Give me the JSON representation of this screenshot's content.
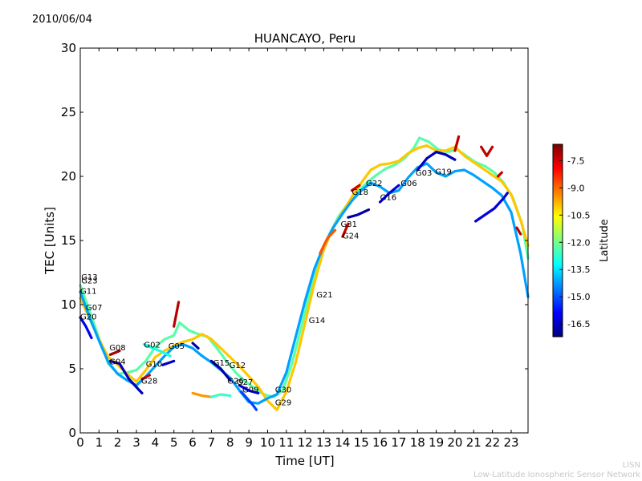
{
  "date_label": "2010/06/04",
  "credits": {
    "line1": "LISN",
    "line2": "Low-Latitude Ionospheric Sensor Network"
  },
  "chart_data": {
    "type": "scatter",
    "title": "HUANCAYO, Peru",
    "xlabel": "Time [UT]",
    "ylabel": "TEC [Units]",
    "xlim": [
      0,
      23.9
    ],
    "ylim": [
      0,
      30
    ],
    "xticks": [
      0,
      1,
      2,
      3,
      4,
      5,
      6,
      7,
      8,
      9,
      10,
      11,
      12,
      13,
      14,
      15,
      16,
      17,
      18,
      19,
      20,
      21,
      22,
      23
    ],
    "yticks": [
      0,
      5,
      10,
      15,
      20,
      25,
      30
    ],
    "colorbar": {
      "label": "Latitude",
      "range": [
        -17.2,
        -6.6
      ],
      "ticks": [
        -7.5,
        -9.0,
        -10.5,
        -12.0,
        -13.5,
        -15.0,
        -16.5
      ],
      "colors": [
        "#00007f",
        "#0000ff",
        "#007fff",
        "#00ffff",
        "#7fff7f",
        "#ffff00",
        "#ff7f00",
        "#ff0000",
        "#7f0000"
      ]
    },
    "series": [
      {
        "name": "trace-a",
        "lat": -12.3,
        "points": [
          [
            0,
            11.5
          ],
          [
            0.5,
            9.5
          ],
          [
            1,
            7.4
          ],
          [
            1.5,
            5.4
          ],
          [
            2,
            4.6
          ],
          [
            2.5,
            4.7
          ],
          [
            3,
            4.9
          ],
          [
            3.5,
            5.6
          ],
          [
            4,
            6.7
          ],
          [
            4.5,
            7.3
          ],
          [
            5,
            7.6
          ],
          [
            5.3,
            8.6
          ],
          [
            5.8,
            8.0
          ],
          [
            6.3,
            7.7
          ],
          [
            6.8,
            7.5
          ],
          [
            7.3,
            6.6
          ],
          [
            7.8,
            5.6
          ],
          [
            8.3,
            4.7
          ],
          [
            8.8,
            4.0
          ],
          [
            9.3,
            3.5
          ],
          [
            9.8,
            3.0
          ],
          [
            10.3,
            2.8
          ],
          [
            10.8,
            3.3
          ],
          [
            11.3,
            5.4
          ],
          [
            11.8,
            8.3
          ],
          [
            12.3,
            11.2
          ],
          [
            12.8,
            13.6
          ],
          [
            13.3,
            15.5
          ],
          [
            13.8,
            16.9
          ],
          [
            14.3,
            17.9
          ],
          [
            14.8,
            18.8
          ],
          [
            15.3,
            19.5
          ],
          [
            15.8,
            20.1
          ],
          [
            16.3,
            20.6
          ],
          [
            16.8,
            20.9
          ],
          [
            17.3,
            21.4
          ],
          [
            17.8,
            22.2
          ],
          [
            18.1,
            23.0
          ],
          [
            18.6,
            22.7
          ],
          [
            19.1,
            22.1
          ],
          [
            19.6,
            21.9
          ],
          [
            20.1,
            22.1
          ],
          [
            20.6,
            21.6
          ],
          [
            21.1,
            21.1
          ],
          [
            21.6,
            20.8
          ],
          [
            22.1,
            20.3
          ],
          [
            22.6,
            19.5
          ],
          [
            23.1,
            18.3
          ],
          [
            23.6,
            16.2
          ],
          [
            23.9,
            13.6
          ]
        ]
      },
      {
        "name": "trace-b",
        "lat": -10.0,
        "points": [
          [
            0,
            10.5
          ],
          [
            0.5,
            8.9
          ],
          [
            1,
            7.3
          ],
          [
            1.5,
            5.9
          ],
          [
            2,
            5.3
          ],
          [
            2.5,
            4.6
          ],
          [
            3,
            4.0
          ],
          [
            3.5,
            4.9
          ],
          [
            4,
            5.9
          ],
          [
            4.5,
            6.4
          ],
          [
            5,
            6.8
          ],
          [
            5.5,
            7.1
          ],
          [
            6,
            7.3
          ],
          [
            6.5,
            7.7
          ],
          [
            7,
            7.3
          ],
          [
            7.5,
            6.6
          ],
          [
            8,
            5.9
          ],
          [
            8.5,
            5.2
          ],
          [
            9,
            4.4
          ],
          [
            9.5,
            3.6
          ],
          [
            10,
            2.5
          ],
          [
            10.5,
            1.8
          ],
          [
            11,
            3.2
          ],
          [
            11.5,
            5.5
          ],
          [
            12,
            8.6
          ],
          [
            12.5,
            11.7
          ],
          [
            13,
            14.3
          ],
          [
            13.5,
            16.0
          ],
          [
            14,
            17.2
          ],
          [
            14.5,
            18.4
          ],
          [
            15,
            19.5
          ],
          [
            15.5,
            20.5
          ],
          [
            16,
            20.9
          ],
          [
            16.5,
            21.0
          ],
          [
            17,
            21.2
          ],
          [
            17.5,
            21.8
          ],
          [
            18,
            22.2
          ],
          [
            18.5,
            22.4
          ],
          [
            19,
            22.0
          ],
          [
            19.5,
            22.0
          ],
          [
            20,
            22.3
          ],
          [
            20.5,
            21.6
          ],
          [
            21,
            21.1
          ],
          [
            21.5,
            20.6
          ],
          [
            22,
            20.1
          ],
          [
            22.5,
            19.6
          ],
          [
            23,
            18.6
          ],
          [
            23.5,
            16.6
          ],
          [
            23.9,
            14.6
          ]
        ]
      },
      {
        "name": "trace-c",
        "lat": -14.2,
        "points": [
          [
            0,
            11.0
          ],
          [
            0.5,
            9.0
          ],
          [
            1,
            7.2
          ],
          [
            1.5,
            5.5
          ],
          [
            2,
            4.6
          ],
          [
            2.5,
            4.1
          ],
          [
            3,
            3.7
          ],
          [
            3.5,
            4.4
          ],
          [
            4,
            5.2
          ],
          [
            4.5,
            6.0
          ],
          [
            5,
            6.7
          ],
          [
            5.5,
            6.9
          ],
          [
            6,
            6.6
          ],
          [
            6.5,
            6.0
          ],
          [
            7,
            5.5
          ],
          [
            7.5,
            4.9
          ],
          [
            8,
            4.3
          ],
          [
            8.5,
            3.3
          ],
          [
            9,
            2.4
          ],
          [
            9.5,
            2.3
          ],
          [
            10,
            2.7
          ],
          [
            10.5,
            3.0
          ],
          [
            11,
            4.7
          ],
          [
            11.5,
            7.5
          ],
          [
            12,
            10.3
          ],
          [
            12.5,
            12.8
          ],
          [
            13,
            14.6
          ],
          [
            13.5,
            16.0
          ],
          [
            14,
            17.1
          ],
          [
            14.5,
            18.1
          ],
          [
            15,
            18.9
          ],
          [
            15.5,
            19.5
          ],
          [
            16,
            19.2
          ],
          [
            16.5,
            18.7
          ],
          [
            17,
            18.9
          ],
          [
            17.5,
            19.9
          ],
          [
            18,
            20.7
          ],
          [
            18.5,
            21.0
          ],
          [
            19,
            20.3
          ],
          [
            19.5,
            20.0
          ],
          [
            20,
            20.4
          ],
          [
            20.5,
            20.5
          ],
          [
            21,
            20.1
          ],
          [
            21.5,
            19.6
          ],
          [
            22,
            19.1
          ],
          [
            22.5,
            18.5
          ],
          [
            23,
            17.2
          ],
          [
            23.5,
            14.0
          ],
          [
            23.9,
            10.6
          ]
        ]
      },
      {
        "name": "trace-d",
        "lat": -16.0,
        "points": [
          [
            0,
            9.0
          ],
          [
            0.3,
            8.3
          ],
          [
            0.6,
            7.4
          ]
        ]
      },
      {
        "name": "trace-e",
        "lat": -16.6,
        "points": [
          [
            1.6,
            5.6
          ],
          [
            2.1,
            5.4
          ],
          [
            2.6,
            4.2
          ],
          [
            3.1,
            3.4
          ],
          [
            3.3,
            3.1
          ]
        ]
      },
      {
        "name": "trace-f",
        "lat": -7.0,
        "points": [
          [
            1.6,
            6.1
          ],
          [
            2.1,
            6.4
          ]
        ]
      },
      {
        "name": "trace-g",
        "lat": -13.0,
        "points": [
          [
            3.4,
            6.9
          ],
          [
            3.9,
            6.6
          ],
          [
            4.4,
            6.3
          ],
          [
            4.8,
            6.0
          ]
        ]
      },
      {
        "name": "trace-h",
        "lat": -7.4,
        "points": [
          [
            3.3,
            4.2
          ],
          [
            3.7,
            4.5
          ]
        ]
      },
      {
        "name": "trace-i",
        "lat": -16.4,
        "points": [
          [
            4.4,
            5.3
          ],
          [
            4.8,
            5.5
          ],
          [
            5.0,
            5.6
          ]
        ]
      },
      {
        "name": "trace-j",
        "lat": -7.2,
        "points": [
          [
            5.0,
            8.3
          ],
          [
            5.25,
            10.2
          ]
        ]
      },
      {
        "name": "trace-k",
        "lat": -9.5,
        "points": [
          [
            6.0,
            3.1
          ],
          [
            6.5,
            2.9
          ],
          [
            7.0,
            2.8
          ]
        ]
      },
      {
        "name": "trace-l",
        "lat": -12.6,
        "points": [
          [
            7.0,
            2.8
          ],
          [
            7.5,
            3.0
          ],
          [
            8.0,
            2.9
          ]
        ]
      },
      {
        "name": "trace-m",
        "lat": -16.8,
        "points": [
          [
            6.0,
            7.0
          ],
          [
            6.3,
            6.6
          ]
        ]
      },
      {
        "name": "trace-n",
        "lat": -16.8,
        "points": [
          [
            7.0,
            5.6
          ],
          [
            7.5,
            5.0
          ],
          [
            8.0,
            4.1
          ]
        ]
      },
      {
        "name": "trace-o",
        "lat": -16.2,
        "points": [
          [
            8.5,
            3.7
          ],
          [
            9.0,
            3.3
          ],
          [
            9.5,
            3.1
          ]
        ]
      },
      {
        "name": "trace-p",
        "lat": -15.2,
        "points": [
          [
            8.6,
            3.2
          ],
          [
            9.2,
            2.2
          ],
          [
            9.4,
            1.8
          ]
        ]
      },
      {
        "name": "trace-q",
        "lat": -8.8,
        "points": [
          [
            12.8,
            14.0
          ],
          [
            13.2,
            15.2
          ],
          [
            13.6,
            15.8
          ]
        ]
      },
      {
        "name": "trace-r",
        "lat": -7.3,
        "points": [
          [
            14.0,
            15.3
          ],
          [
            14.3,
            16.3
          ]
        ]
      },
      {
        "name": "trace-s",
        "lat": -16.8,
        "points": [
          [
            14.3,
            16.8
          ],
          [
            14.8,
            17.0
          ],
          [
            15.4,
            17.4
          ]
        ]
      },
      {
        "name": "trace-t",
        "lat": -7.4,
        "points": [
          [
            14.5,
            18.9
          ],
          [
            14.9,
            19.3
          ]
        ]
      },
      {
        "name": "trace-u",
        "lat": -16.4,
        "points": [
          [
            16.0,
            18.0
          ],
          [
            16.5,
            18.7
          ],
          [
            17.0,
            19.3
          ]
        ]
      },
      {
        "name": "trace-v",
        "lat": -16.6,
        "points": [
          [
            18.0,
            20.5
          ],
          [
            18.5,
            21.4
          ],
          [
            19.0,
            21.9
          ],
          [
            19.5,
            21.7
          ],
          [
            20.0,
            21.3
          ]
        ]
      },
      {
        "name": "trace-w",
        "lat": -7.2,
        "points": [
          [
            20.0,
            22.0
          ],
          [
            20.2,
            23.1
          ]
        ]
      },
      {
        "name": "trace-x",
        "lat": -16.2,
        "points": [
          [
            21.1,
            16.5
          ],
          [
            21.6,
            17.0
          ],
          [
            22.1,
            17.5
          ],
          [
            22.6,
            18.3
          ],
          [
            22.8,
            18.7
          ]
        ]
      },
      {
        "name": "trace-y",
        "lat": -7.3,
        "points": [
          [
            21.4,
            22.3
          ],
          [
            21.7,
            21.6
          ],
          [
            22.0,
            22.3
          ]
        ]
      },
      {
        "name": "trace-z",
        "lat": -7.3,
        "points": [
          [
            22.3,
            20.0
          ],
          [
            22.5,
            20.3
          ]
        ]
      },
      {
        "name": "trace-aa",
        "lat": -7.2,
        "points": [
          [
            23.3,
            16.0
          ],
          [
            23.5,
            15.5
          ]
        ]
      }
    ],
    "annotations": [
      {
        "label": "G13",
        "x": 0.05,
        "y": 12.2
      },
      {
        "label": "G23",
        "x": 0.05,
        "y": 11.9
      },
      {
        "label": "G11",
        "x": 0.0,
        "y": 11.1
      },
      {
        "label": "G07",
        "x": 0.3,
        "y": 9.8
      },
      {
        "label": "G20",
        "x": 0.0,
        "y": 9.1
      },
      {
        "label": "G08",
        "x": 1.55,
        "y": 6.7
      },
      {
        "label": "G04",
        "x": 1.55,
        "y": 5.6
      },
      {
        "label": "G02",
        "x": 3.4,
        "y": 6.9
      },
      {
        "label": "G05",
        "x": 4.7,
        "y": 6.8
      },
      {
        "label": "G10",
        "x": 3.5,
        "y": 5.4
      },
      {
        "label": "G28",
        "x": 3.25,
        "y": 4.1
      },
      {
        "label": "G15",
        "x": 7.1,
        "y": 5.5
      },
      {
        "label": "G12",
        "x": 7.95,
        "y": 5.3
      },
      {
        "label": "G26",
        "x": 7.85,
        "y": 4.1
      },
      {
        "label": "G27",
        "x": 8.35,
        "y": 4.0
      },
      {
        "label": "G09",
        "x": 8.65,
        "y": 3.4
      },
      {
        "label": "G30",
        "x": 10.4,
        "y": 3.4
      },
      {
        "label": "G29",
        "x": 10.4,
        "y": 2.4
      },
      {
        "label": "G21",
        "x": 12.6,
        "y": 10.8
      },
      {
        "label": "G14",
        "x": 12.2,
        "y": 8.8
      },
      {
        "label": "G31",
        "x": 13.9,
        "y": 16.3
      },
      {
        "label": "G24",
        "x": 14.0,
        "y": 15.4
      },
      {
        "label": "G18",
        "x": 14.5,
        "y": 18.8
      },
      {
        "label": "G22",
        "x": 15.25,
        "y": 19.5
      },
      {
        "label": "G16",
        "x": 16.0,
        "y": 18.4
      },
      {
        "label": "G06",
        "x": 17.1,
        "y": 19.5
      },
      {
        "label": "G03",
        "x": 17.9,
        "y": 20.3
      },
      {
        "label": "G19",
        "x": 18.95,
        "y": 20.4
      }
    ]
  }
}
